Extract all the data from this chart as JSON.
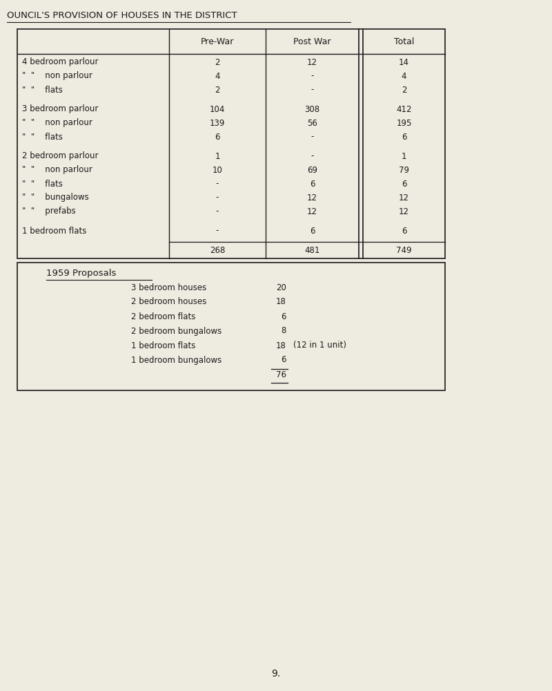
{
  "title": "OUNCIL'S PROVISION OF HOUSES IN THE DISTRICT",
  "bg_color": "#eeebe0",
  "text_color": "#1a1a1a",
  "font_family": "Courier New",
  "col_headers": [
    "Pre-War",
    "Post War",
    "Total"
  ],
  "row_data": [
    {
      "label": "4 bedroom parlour",
      "pre": "2",
      "post": "12",
      "total": "14",
      "spacer_after": false
    },
    {
      "label": "\"  \"    non parlour",
      "pre": "4",
      "post": "-",
      "total": "4",
      "spacer_after": false
    },
    {
      "label": "\"  \"    flats",
      "pre": "2",
      "post": "-",
      "total": "2",
      "spacer_after": true
    },
    {
      "label": "3 bedroom parlour",
      "pre": "104",
      "post": "308",
      "total": "412",
      "spacer_after": false
    },
    {
      "label": "\"  \"    non parlour",
      "pre": "139",
      "post": "56",
      "total": "195",
      "spacer_after": false
    },
    {
      "label": "\"  \"    flats",
      "pre": "6",
      "post": "-",
      "total": "6",
      "spacer_after": true
    },
    {
      "label": "2 bedroom parlour",
      "pre": "1",
      "post": "-",
      "total": "1",
      "spacer_after": false
    },
    {
      "label": "\"  \"    non parlour",
      "pre": "10",
      "post": "69",
      "total": "79",
      "spacer_after": false
    },
    {
      "label": "\"  \"    flats",
      "pre": "-",
      "post": "6",
      "total": "6",
      "spacer_after": false
    },
    {
      "label": "\"  \"    bungalows",
      "pre": "-",
      "post": "12",
      "total": "12",
      "spacer_after": false
    },
    {
      "label": "\"  \"    prefabs",
      "pre": "-",
      "post": "12",
      "total": "12",
      "spacer_after": true
    },
    {
      "label": "1 bedroom flats",
      "pre": "-",
      "post": "6",
      "total": "6",
      "spacer_after": true
    },
    {
      "label": "",
      "pre": "268",
      "post": "481",
      "total": "749",
      "spacer_after": false
    }
  ],
  "proposals_title": "1959 Proposals",
  "proposals_rows": [
    {
      "label": "3 bedroom houses",
      "value": "20",
      "note": ""
    },
    {
      "label": "2 bedroom houses",
      "value": "18",
      "note": ""
    },
    {
      "label": "2 bedroom flats",
      "value": "6",
      "note": ""
    },
    {
      "label": "2 bedroom bungalows",
      "value": "8",
      "note": ""
    },
    {
      "label": "1 bedroom flats",
      "value": "18",
      "note": "(12 in 1 unit)"
    },
    {
      "label": "1 bedroom bungalows",
      "value": "6",
      "note": ""
    },
    {
      "label": "",
      "value": "76",
      "note": ""
    }
  ],
  "page_number": "9."
}
